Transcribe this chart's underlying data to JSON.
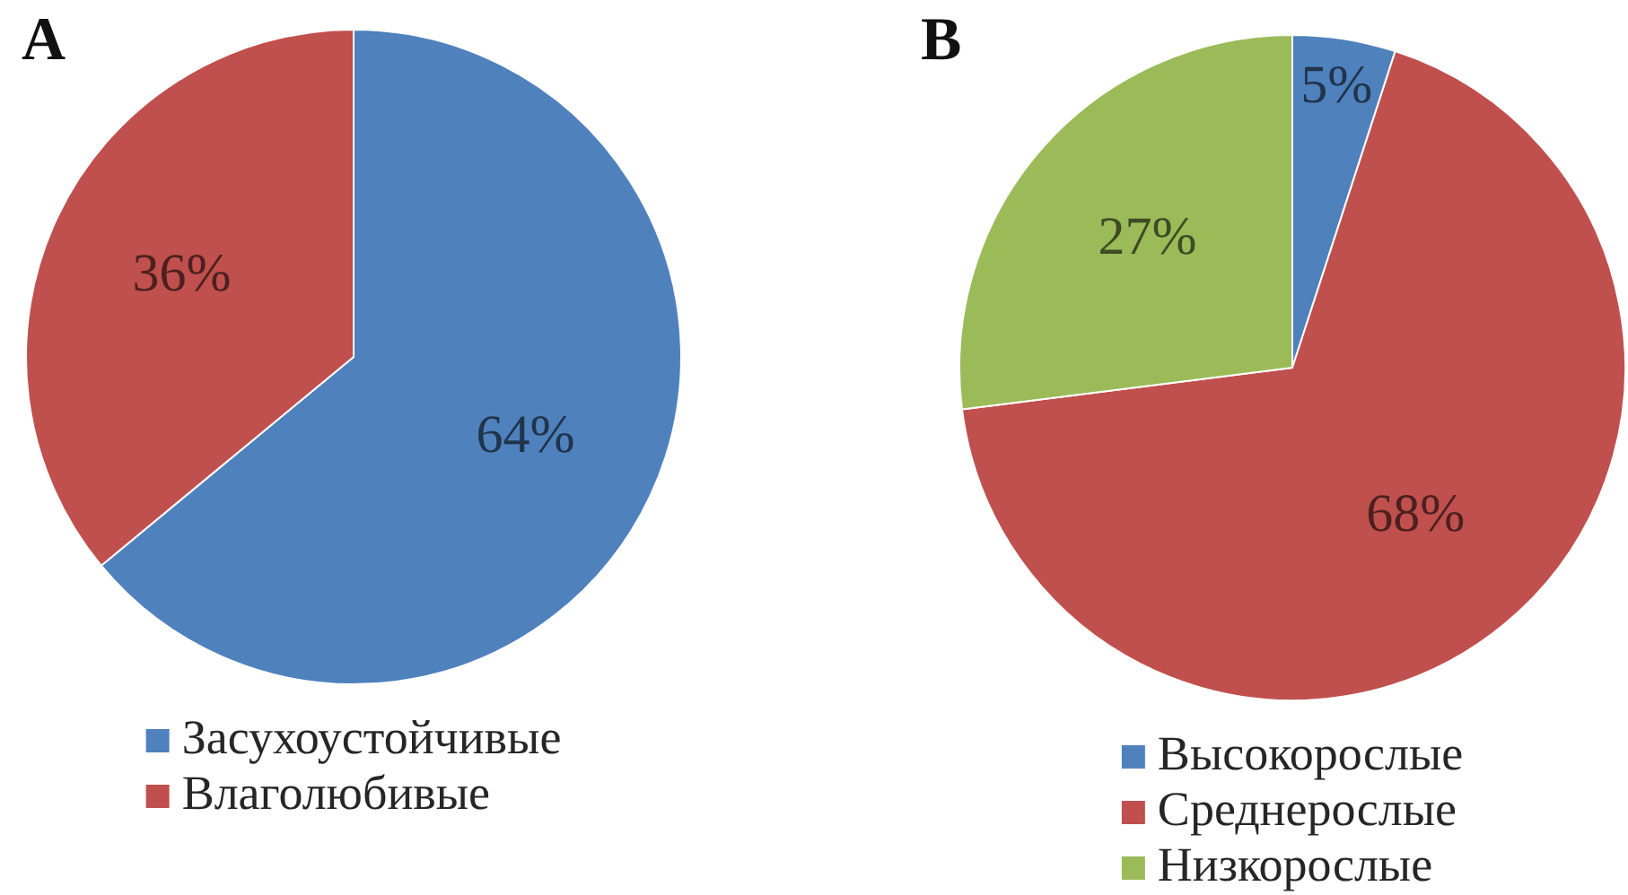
{
  "chart_data": [
    {
      "type": "pie",
      "title": "A",
      "categories": [
        "Засухоустойчивые",
        "Влаголюбивые"
      ],
      "values": [
        64,
        36
      ],
      "colors": [
        "#4f81bd",
        "#c0504d"
      ],
      "value_labels": [
        "64%",
        "36%"
      ],
      "legend": "bottom"
    },
    {
      "type": "pie",
      "title": "B",
      "categories": [
        "Высокорослые",
        "Среднерослые",
        "Низкорослые"
      ],
      "values": [
        5,
        68,
        27
      ],
      "colors": [
        "#4f81bd",
        "#c0504d",
        "#9bbb59"
      ],
      "value_labels": [
        "5%",
        "68%",
        "27%"
      ],
      "legend": "bottom"
    }
  ]
}
